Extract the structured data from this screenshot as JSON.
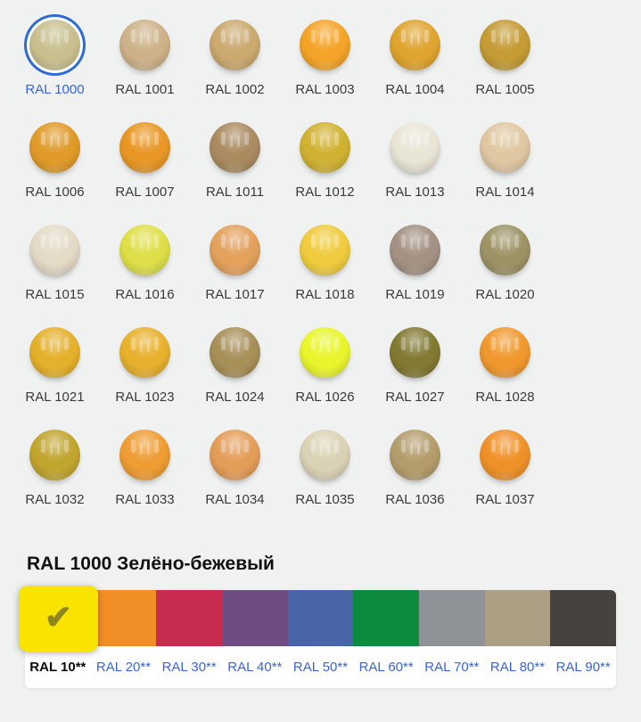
{
  "page": {
    "background": "#f0f1f1",
    "link_color": "#3b63d4",
    "text_color": "#3a3a3a"
  },
  "grid": {
    "items": [
      {
        "code": "RAL 1000",
        "color": "#C9BF8E",
        "selected": true
      },
      {
        "code": "RAL 1001",
        "color": "#CDB289",
        "selected": false
      },
      {
        "code": "RAL 1002",
        "color": "#CBA96F",
        "selected": false
      },
      {
        "code": "RAL 1003",
        "color": "#F4A428",
        "selected": false
      },
      {
        "code": "RAL 1004",
        "color": "#DFA42F",
        "selected": false
      },
      {
        "code": "RAL 1005",
        "color": "#C49B35",
        "selected": false
      },
      {
        "code": "RAL 1006",
        "color": "#E09A28",
        "selected": false
      },
      {
        "code": "RAL 1007",
        "color": "#E89726",
        "selected": false
      },
      {
        "code": "RAL 1011",
        "color": "#AA8B60",
        "selected": false
      },
      {
        "code": "RAL 1012",
        "color": "#D0B232",
        "selected": false
      },
      {
        "code": "RAL 1013",
        "color": "#E9E5D6",
        "selected": false
      },
      {
        "code": "RAL 1014",
        "color": "#DFC7A1",
        "selected": false
      },
      {
        "code": "RAL 1015",
        "color": "#E4DAC6",
        "selected": false
      },
      {
        "code": "RAL 1016",
        "color": "#DEDF48",
        "selected": false
      },
      {
        "code": "RAL 1017",
        "color": "#E3A15C",
        "selected": false
      },
      {
        "code": "RAL 1018",
        "color": "#EFCB3D",
        "selected": false
      },
      {
        "code": "RAL 1019",
        "color": "#A39283",
        "selected": false
      },
      {
        "code": "RAL 1020",
        "color": "#9C9365",
        "selected": false
      },
      {
        "code": "RAL 1021",
        "color": "#E5B02B",
        "selected": false
      },
      {
        "code": "RAL 1023",
        "color": "#E7B12E",
        "selected": false
      },
      {
        "code": "RAL 1024",
        "color": "#A78F58",
        "selected": false
      },
      {
        "code": "RAL 1026",
        "color": "#E8F52C",
        "selected": false
      },
      {
        "code": "RAL 1027",
        "color": "#827932",
        "selected": false
      },
      {
        "code": "RAL 1028",
        "color": "#F0982E",
        "selected": false
      },
      {
        "code": "RAL 1032",
        "color": "#C1A52F",
        "selected": false
      },
      {
        "code": "RAL 1033",
        "color": "#EE9C34",
        "selected": false
      },
      {
        "code": "RAL 1034",
        "color": "#E49D58",
        "selected": false
      },
      {
        "code": "RAL 1035",
        "color": "#DBD2B5",
        "selected": false
      },
      {
        "code": "RAL 1036",
        "color": "#B49C6C",
        "selected": false
      },
      {
        "code": "RAL 1037",
        "color": "#EF9129",
        "selected": false
      }
    ]
  },
  "detail": {
    "heading": "RAL 1000 Зелёно-бежевый"
  },
  "palette": {
    "check_icon": "✔",
    "check_color": "#8e861d",
    "groups": [
      {
        "label": "RAL 10**",
        "color": "#F8E400",
        "selected": true
      },
      {
        "label": "RAL 20**",
        "color": "#F28E26",
        "selected": false
      },
      {
        "label": "RAL 30**",
        "color": "#C72B4D",
        "selected": false
      },
      {
        "label": "RAL 40**",
        "color": "#6E4D83",
        "selected": false
      },
      {
        "label": "RAL 50**",
        "color": "#4A64A8",
        "selected": false
      },
      {
        "label": "RAL 60**",
        "color": "#0C8B3E",
        "selected": false
      },
      {
        "label": "RAL 70**",
        "color": "#8F9296",
        "selected": false
      },
      {
        "label": "RAL 80**",
        "color": "#ACA084",
        "selected": false
      },
      {
        "label": "RAL 90**",
        "color": "#454240",
        "selected": false
      }
    ]
  }
}
